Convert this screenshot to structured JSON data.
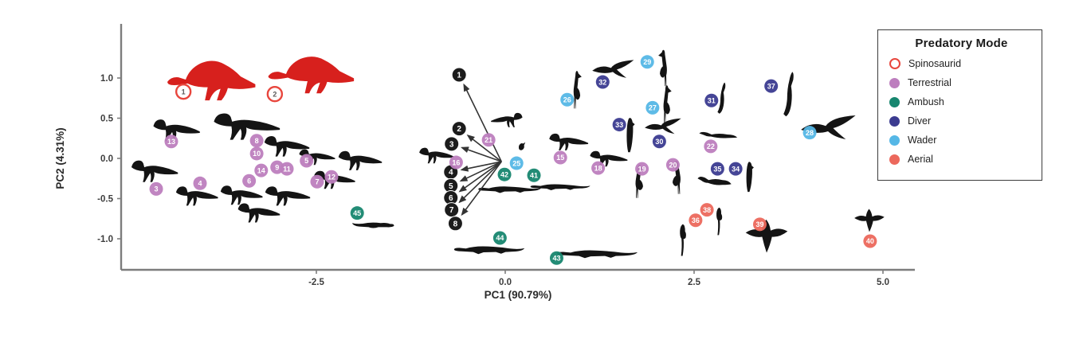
{
  "legend": {
    "title": "Predatory Mode",
    "items": [
      {
        "label": "Spinosaurid",
        "color": "#e8463d",
        "style": "open"
      },
      {
        "label": "Terrestrial",
        "color": "#bd7ebe",
        "style": "filled"
      },
      {
        "label": "Ambush",
        "color": "#17866f",
        "style": "filled"
      },
      {
        "label": "Diver",
        "color": "#3b3b90",
        "style": "filled"
      },
      {
        "label": "Wader",
        "color": "#55b7e6",
        "style": "filled"
      },
      {
        "label": "Aerial",
        "color": "#ec685c",
        "style": "filled"
      }
    ]
  },
  "chart_data": {
    "type": "scatter",
    "title": "",
    "xlabel": "PC1 (90.79%)",
    "ylabel": "PC2 (4.31%)",
    "x_ticks": [
      -2.5,
      0.0,
      2.5,
      5.0
    ],
    "y_ticks": [
      1.0,
      0.5,
      0.0,
      -0.5,
      -1.0
    ],
    "xlim": [
      -5.08,
      5.42
    ],
    "ylim": [
      -1.4,
      1.72
    ],
    "grid": false,
    "legend_position": "top-right",
    "axis_color": "#7d7d7d",
    "series": [
      {
        "name": "Spinosaurid",
        "marker": "open-circle",
        "color": "#e8463d",
        "points": [
          {
            "id": 1,
            "x": -4.26,
            "y": 0.83
          },
          {
            "id": 2,
            "x": -3.05,
            "y": 0.8
          }
        ]
      },
      {
        "name": "Terrestrial",
        "marker": "circle",
        "color": "#bd7ebe",
        "points": [
          {
            "id": 3,
            "x": -4.62,
            "y": -0.38
          },
          {
            "id": 4,
            "x": -4.04,
            "y": -0.31
          },
          {
            "id": 5,
            "x": -2.63,
            "y": -0.03
          },
          {
            "id": 6,
            "x": -3.39,
            "y": -0.28
          },
          {
            "id": 7,
            "x": -2.49,
            "y": -0.29
          },
          {
            "id": 8,
            "x": -3.29,
            "y": 0.22
          },
          {
            "id": 9,
            "x": -3.02,
            "y": -0.11
          },
          {
            "id": 10,
            "x": -3.29,
            "y": 0.06
          },
          {
            "id": 11,
            "x": -2.89,
            "y": -0.13
          },
          {
            "id": 12,
            "x": -2.3,
            "y": -0.23
          },
          {
            "id": 13,
            "x": -4.42,
            "y": 0.21
          },
          {
            "id": 14,
            "x": -3.23,
            "y": -0.15
          },
          {
            "id": 16,
            "x": -0.65,
            "y": -0.05
          },
          {
            "id": 21,
            "x": -0.22,
            "y": 0.23
          },
          {
            "id": 15,
            "x": 0.73,
            "y": 0.01
          },
          {
            "id": 18,
            "x": 1.23,
            "y": -0.12
          },
          {
            "id": 19,
            "x": 1.81,
            "y": -0.13
          },
          {
            "id": 20,
            "x": 2.22,
            "y": -0.08
          },
          {
            "id": 22,
            "x": 2.72,
            "y": 0.15
          }
        ]
      },
      {
        "name": "Ambush",
        "marker": "circle",
        "color": "#17866f",
        "points": [
          {
            "id": 41,
            "x": 0.38,
            "y": -0.21
          },
          {
            "id": 42,
            "x": -0.01,
            "y": -0.2
          },
          {
            "id": 45,
            "x": -1.96,
            "y": -0.68
          },
          {
            "id": 44,
            "x": -0.07,
            "y": -0.99
          },
          {
            "id": 43,
            "x": 0.68,
            "y": -1.24
          }
        ]
      },
      {
        "name": "Diver",
        "marker": "circle",
        "color": "#3b3b90",
        "points": [
          {
            "id": 30,
            "x": 2.04,
            "y": 0.21
          },
          {
            "id": 31,
            "x": 2.73,
            "y": 0.72
          },
          {
            "id": 32,
            "x": 1.29,
            "y": 0.95
          },
          {
            "id": 33,
            "x": 1.51,
            "y": 0.42
          },
          {
            "id": 34,
            "x": 3.05,
            "y": -0.13
          },
          {
            "id": 35,
            "x": 2.81,
            "y": -0.13
          },
          {
            "id": 37,
            "x": 3.52,
            "y": 0.9
          }
        ]
      },
      {
        "name": "Wader",
        "marker": "circle",
        "color": "#55b7e6",
        "points": [
          {
            "id": 25,
            "x": 0.15,
            "y": -0.06
          },
          {
            "id": 26,
            "x": 0.82,
            "y": 0.73
          },
          {
            "id": 27,
            "x": 1.95,
            "y": 0.63
          },
          {
            "id": 28,
            "x": 4.03,
            "y": 0.32
          },
          {
            "id": 29,
            "x": 1.88,
            "y": 1.2
          }
        ]
      },
      {
        "name": "Aerial",
        "marker": "circle",
        "color": "#ec685c",
        "points": [
          {
            "id": 36,
            "x": 2.52,
            "y": -0.77
          },
          {
            "id": 38,
            "x": 2.67,
            "y": -0.64
          },
          {
            "id": 39,
            "x": 3.37,
            "y": -0.82
          },
          {
            "id": 40,
            "x": 4.83,
            "y": -1.03
          }
        ]
      }
    ],
    "loading_arrows": {
      "origin": [
        -0.05,
        -0.04
      ],
      "color": "#333333",
      "label_fill": "#1c1c1c",
      "labels": [
        {
          "id": 1,
          "x": -0.61,
          "y": 1.04
        },
        {
          "id": 2,
          "x": -0.61,
          "y": 0.37
        },
        {
          "id": 3,
          "x": -0.71,
          "y": 0.18
        },
        {
          "id": 4,
          "x": -0.72,
          "y": -0.17
        },
        {
          "id": 5,
          "x": -0.72,
          "y": -0.34
        },
        {
          "id": 6,
          "x": -0.72,
          "y": -0.49
        },
        {
          "id": 7,
          "x": -0.71,
          "y": -0.64
        },
        {
          "id": 8,
          "x": -0.66,
          "y": -0.81
        }
      ]
    },
    "silhouettes": [
      {
        "type": "spinosaur",
        "x": -3.89,
        "y": 0.98,
        "w": 115,
        "h": 58,
        "flip": false,
        "color": "#d7201d"
      },
      {
        "type": "spinosaur",
        "x": -2.57,
        "y": 1.05,
        "w": 112,
        "h": 54,
        "flip": false,
        "color": "#d7201d"
      },
      {
        "type": "theropod",
        "x": -4.35,
        "y": 0.37,
        "w": 62,
        "h": 36,
        "flip": false
      },
      {
        "type": "theropod",
        "x": -3.42,
        "y": 0.42,
        "w": 88,
        "h": 44,
        "flip": false
      },
      {
        "type": "theropod",
        "x": -2.89,
        "y": 0.17,
        "w": 60,
        "h": 34,
        "flip": false
      },
      {
        "type": "theropod",
        "x": -2.49,
        "y": 0.03,
        "w": 48,
        "h": 26,
        "flip": false
      },
      {
        "type": "theropod",
        "x": -1.92,
        "y": -0.01,
        "w": 58,
        "h": 32,
        "flip": false
      },
      {
        "type": "theropod",
        "x": -4.64,
        "y": -0.14,
        "w": 62,
        "h": 36,
        "flip": false
      },
      {
        "type": "theropod",
        "x": -4.08,
        "y": -0.45,
        "w": 56,
        "h": 32,
        "flip": false
      },
      {
        "type": "theropod",
        "x": -3.49,
        "y": -0.44,
        "w": 56,
        "h": 32,
        "flip": false
      },
      {
        "type": "theropod",
        "x": -2.88,
        "y": -0.45,
        "w": 60,
        "h": 32,
        "flip": false
      },
      {
        "type": "theropod",
        "x": -2.26,
        "y": -0.25,
        "w": 55,
        "h": 30,
        "flip": false
      },
      {
        "type": "theropod",
        "x": -3.26,
        "y": -0.66,
        "w": 56,
        "h": 32,
        "flip": false
      },
      {
        "type": "otter",
        "x": -1.75,
        "y": -0.83,
        "w": 56,
        "h": 22,
        "flip": true
      },
      {
        "type": "theropod",
        "x": -0.91,
        "y": 0.05,
        "w": 46,
        "h": 26,
        "flip": false
      },
      {
        "type": "theropod",
        "x": 0.02,
        "y": 0.49,
        "w": 42,
        "h": 24,
        "flip": true
      },
      {
        "type": "small-bird",
        "x": 0.23,
        "y": 0.15,
        "w": 20,
        "h": 18,
        "flip": false
      },
      {
        "type": "croc",
        "x": 0.06,
        "y": -0.38,
        "w": 82,
        "h": 22,
        "flip": false
      },
      {
        "type": "croc",
        "x": 0.73,
        "y": -0.35,
        "w": 78,
        "h": 20,
        "flip": false
      },
      {
        "type": "croc",
        "x": -0.21,
        "y": -1.13,
        "w": 92,
        "h": 26,
        "flip": false
      },
      {
        "type": "croc",
        "x": 1.22,
        "y": -1.18,
        "w": 105,
        "h": 26,
        "flip": false
      },
      {
        "type": "theropod",
        "x": 0.84,
        "y": 0.22,
        "w": 52,
        "h": 28,
        "flip": false
      },
      {
        "type": "theropod",
        "x": 1.37,
        "y": 0.01,
        "w": 50,
        "h": 26,
        "flip": false
      },
      {
        "type": "heron",
        "x": 0.98,
        "y": 0.86,
        "w": 30,
        "h": 52,
        "flip": false
      },
      {
        "type": "heron",
        "x": 2.06,
        "y": 1.13,
        "w": 32,
        "h": 50,
        "flip": true
      },
      {
        "type": "heron",
        "x": 2.17,
        "y": 0.68,
        "w": 30,
        "h": 52,
        "flip": false
      },
      {
        "type": "flying-bird",
        "x": 1.43,
        "y": 1.1,
        "w": 55,
        "h": 30,
        "flip": false
      },
      {
        "type": "penguin",
        "x": 1.66,
        "y": 0.29,
        "w": 26,
        "h": 48,
        "flip": false
      },
      {
        "type": "flying-bird",
        "x": 2.09,
        "y": 0.39,
        "w": 48,
        "h": 26,
        "flip": false
      },
      {
        "type": "cormorant",
        "x": 2.87,
        "y": 0.75,
        "w": 30,
        "h": 42,
        "flip": false
      },
      {
        "type": "loon",
        "x": 2.82,
        "y": 0.29,
        "w": 52,
        "h": 22,
        "flip": true
      },
      {
        "type": "heron",
        "x": 1.81,
        "y": -0.28,
        "w": 34,
        "h": 46,
        "flip": false
      },
      {
        "type": "heron",
        "x": 2.23,
        "y": -0.23,
        "w": 36,
        "h": 46,
        "flip": true
      },
      {
        "type": "cormorant",
        "x": 3.76,
        "y": 0.8,
        "w": 38,
        "h": 60,
        "flip": false
      },
      {
        "type": "flying-bird",
        "x": 4.28,
        "y": 0.37,
        "w": 72,
        "h": 40,
        "flip": false
      },
      {
        "type": "loon",
        "x": 2.77,
        "y": -0.28,
        "w": 46,
        "h": 30,
        "flip": true
      },
      {
        "type": "penguin",
        "x": 3.24,
        "y": -0.23,
        "w": 24,
        "h": 42,
        "flip": false
      },
      {
        "type": "perched-bird",
        "x": 2.36,
        "y": -1.0,
        "w": 28,
        "h": 46,
        "flip": false
      },
      {
        "type": "perched-bird",
        "x": 2.84,
        "y": -0.77,
        "w": 26,
        "h": 40,
        "flip": false
      },
      {
        "type": "eagle",
        "x": 3.46,
        "y": -0.95,
        "w": 56,
        "h": 52,
        "flip": false
      },
      {
        "type": "eagle",
        "x": 4.82,
        "y": -0.76,
        "w": 40,
        "h": 36,
        "flip": false
      }
    ]
  }
}
